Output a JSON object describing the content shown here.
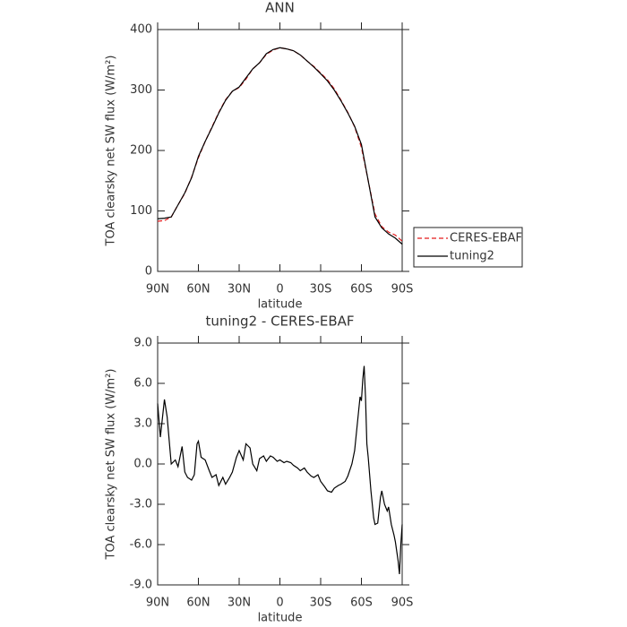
{
  "chart_data": [
    {
      "type": "line",
      "title": "ANN",
      "xlabel": "latitude",
      "ylabel": "TOA clearsky net SW flux (W/m²)",
      "x": [
        90,
        85,
        80,
        75,
        70,
        65,
        60,
        55,
        50,
        45,
        40,
        35,
        30,
        25,
        20,
        15,
        10,
        5,
        0,
        -5,
        -10,
        -15,
        -20,
        -25,
        -30,
        -35,
        -40,
        -45,
        -50,
        -55,
        -60,
        -65,
        -70,
        -75,
        -80,
        -85,
        -90
      ],
      "xlim": [
        90,
        -90
      ],
      "xticks": [
        {
          "value": 90,
          "label": "90N"
        },
        {
          "value": 60,
          "label": "60N"
        },
        {
          "value": 30,
          "label": "30N"
        },
        0,
        {
          "value": -30,
          "label": "30S"
        },
        {
          "value": -60,
          "label": "60S"
        },
        {
          "value": -90,
          "label": "90S"
        }
      ],
      "ylim": [
        0,
        400
      ],
      "yticks": [
        0,
        100,
        200,
        300,
        400
      ],
      "legend": "right",
      "series": [
        {
          "name": "CERES-EBAF",
          "color": "#e41a1c",
          "linestyle": "dashed",
          "values": [
            83,
            84,
            90,
            110,
            129,
            156,
            188,
            215,
            239,
            263,
            284,
            298,
            304,
            318,
            335,
            345,
            359,
            366,
            370,
            368,
            365,
            358,
            348,
            339,
            328,
            317,
            302,
            283,
            263,
            239,
            205,
            150,
            95,
            74,
            65,
            60,
            50
          ]
        },
        {
          "name": "tuning2",
          "color": "#000000",
          "linestyle": "solid",
          "values": [
            87,
            88,
            90,
            110,
            130,
            155,
            190,
            215,
            238,
            262,
            283,
            298,
            305,
            320,
            335,
            345,
            360,
            367,
            370,
            368,
            365,
            358,
            348,
            338,
            327,
            315,
            300,
            282,
            262,
            240,
            210,
            150,
            90,
            72,
            62,
            55,
            45
          ]
        }
      ]
    },
    {
      "type": "line",
      "title": "tuning2 - CERES-EBAF",
      "xlabel": "latitude",
      "ylabel": "TOA clearsky net SW flux (W/m²)",
      "x": [
        90,
        88,
        85,
        83,
        80,
        77,
        75,
        72,
        70,
        68,
        65,
        63,
        61,
        60,
        58,
        55,
        52,
        50,
        47,
        45,
        42,
        40,
        37,
        35,
        32,
        30,
        27,
        25,
        22,
        20,
        17,
        15,
        12,
        10,
        7,
        5,
        2,
        0,
        -3,
        -5,
        -8,
        -10,
        -13,
        -15,
        -18,
        -20,
        -23,
        -25,
        -28,
        -30,
        -33,
        -35,
        -38,
        -40,
        -43,
        -45,
        -48,
        -50,
        -53,
        -55,
        -57,
        -59,
        -60,
        -61,
        -62,
        -63,
        -64,
        -65,
        -67,
        -69,
        -70,
        -72,
        -74,
        -75,
        -77,
        -79,
        -80,
        -82,
        -84,
        -85,
        -87,
        -88,
        -89,
        -90
      ],
      "xlim": [
        90,
        -90
      ],
      "xticks": [
        {
          "value": 90,
          "label": "90N"
        },
        {
          "value": 60,
          "label": "60N"
        },
        {
          "value": 30,
          "label": "30N"
        },
        0,
        {
          "value": -30,
          "label": "30S"
        },
        {
          "value": -60,
          "label": "60S"
        },
        {
          "value": -90,
          "label": "90S"
        }
      ],
      "ylim": [
        -9,
        9
      ],
      "yticks": [
        {
          "value": -9,
          "label": "-9.0"
        },
        {
          "value": -6,
          "label": "-6.0"
        },
        {
          "value": -3,
          "label": "-3.0"
        },
        {
          "value": 0,
          "label": "0.0"
        },
        {
          "value": 3,
          "label": "3.0"
        },
        {
          "value": 6,
          "label": "6.0"
        },
        {
          "value": 9,
          "label": "9.0"
        }
      ],
      "series": [
        {
          "name": "tuning2",
          "color": "#000000",
          "linestyle": "solid",
          "values": [
            4.5,
            2.0,
            4.8,
            3.5,
            0.0,
            0.3,
            -0.2,
            1.3,
            -0.6,
            -1.0,
            -1.2,
            -0.8,
            1.5,
            1.7,
            0.5,
            0.3,
            -0.5,
            -1.0,
            -0.8,
            -1.6,
            -1.0,
            -1.5,
            -1.0,
            -0.6,
            0.5,
            1.0,
            0.3,
            1.5,
            1.2,
            0.0,
            -0.5,
            0.4,
            0.6,
            0.2,
            0.6,
            0.5,
            0.2,
            0.3,
            0.1,
            0.2,
            0.1,
            -0.1,
            -0.3,
            -0.5,
            -0.3,
            -0.6,
            -0.9,
            -1.0,
            -0.8,
            -1.3,
            -1.7,
            -2.0,
            -2.1,
            -1.8,
            -1.6,
            -1.5,
            -1.3,
            -0.9,
            0.0,
            1.0,
            3.0,
            5.0,
            4.7,
            6.3,
            7.3,
            5.0,
            1.5,
            0.5,
            -2.0,
            -4.0,
            -4.5,
            -4.4,
            -2.5,
            -2.0,
            -3.0,
            -3.5,
            -3.2,
            -4.5,
            -5.3,
            -5.8,
            -7.2,
            -8.2,
            -6.0,
            -4.5
          ]
        }
      ]
    }
  ]
}
